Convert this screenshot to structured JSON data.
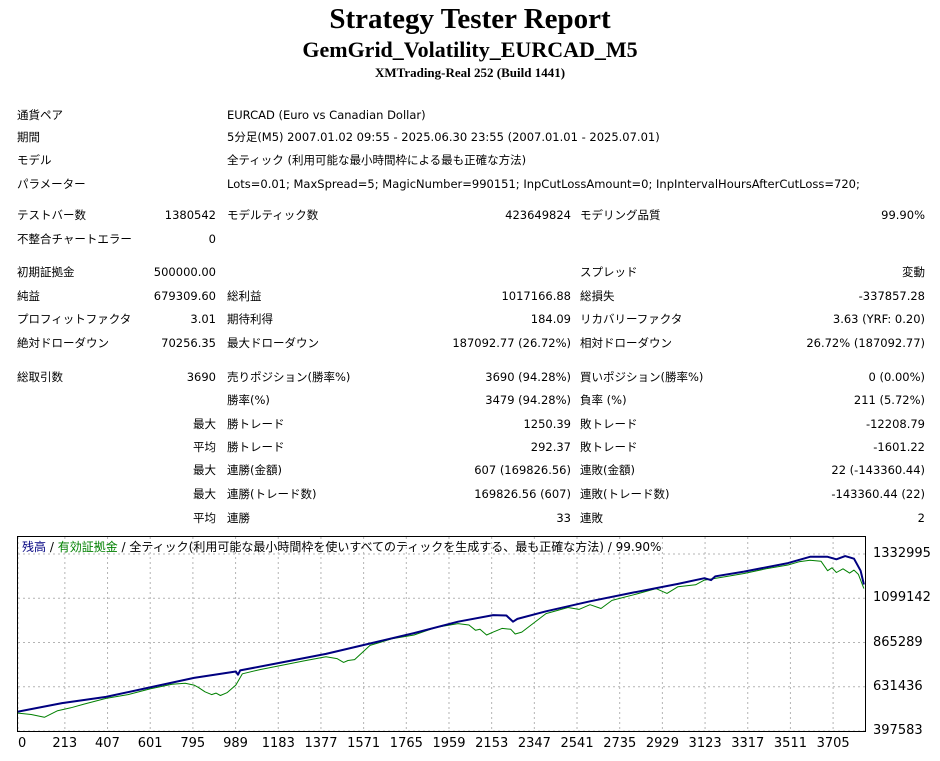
{
  "header": {
    "title": "Strategy Tester Report",
    "subtitle": "GemGrid_Volatility_EURCAD_M5",
    "server": "XMTrading-Real 252 (Build 1441)"
  },
  "settings": {
    "pair_label": "通貨ペア",
    "pair_value": "EURCAD (Euro vs Canadian Dollar)",
    "period_label": "期間",
    "period_value": "5分足(M5) 2007.01.02 09:55 - 2025.06.30 23:55 (2007.01.01 - 2025.07.01)",
    "model_label": "モデル",
    "model_value": "全ティック (利用可能な最小時間枠による最も正確な方法)",
    "params_label": "パラメーター",
    "params_value": "Lots=0.01; MaxSpread=5; MagicNumber=990151; InpCutLossAmount=0; InpIntervalHoursAfterCutLoss=720;"
  },
  "stats": {
    "bars_label": "テストバー数",
    "bars_value": "1380542",
    "ticks_label": "モデルティック数",
    "ticks_value": "423649824",
    "quality_label": "モデリング品質",
    "quality_value": "99.90%",
    "mismatch_label": "不整合チャートエラー",
    "mismatch_value": "0",
    "deposit_label": "初期証拠金",
    "deposit_value": "500000.00",
    "spread_label": "スプレッド",
    "spread_value": "変動",
    "net_label": "純益",
    "net_value": "679309.60",
    "gross_profit_label": "総利益",
    "gross_profit_value": "1017166.88",
    "gross_loss_label": "総損失",
    "gross_loss_value": "-337857.28",
    "pf_label": "プロフィットファクタ",
    "pf_value": "3.01",
    "expected_label": "期待利得",
    "expected_value": "184.09",
    "recovery_label": "リカバリーファクタ",
    "recovery_value": "3.63 (YRF: 0.20)",
    "abs_dd_label": "絶対ドローダウン",
    "abs_dd_value": "70256.35",
    "max_dd_label": "最大ドローダウン",
    "max_dd_value": "187092.77 (26.72%)",
    "rel_dd_label": "相対ドローダウン",
    "rel_dd_value": "26.72% (187092.77)",
    "trades_label": "総取引数",
    "trades_value": "3690",
    "short_label": "売りポジション(勝率%)",
    "short_value": "3690 (94.28%)",
    "long_label": "買いポジション(勝率%)",
    "long_value": "0 (0.00%)",
    "winrate_label": "勝率(%)",
    "winrate_value": "3479 (94.28%)",
    "lossrate_label": "負率 (%)",
    "lossrate_value": "211 (5.72%)",
    "max_label": "最大",
    "avg_label": "平均",
    "largest_win_label": "勝トレード",
    "largest_win_value": "1250.39",
    "largest_loss_label": "敗トレード",
    "largest_loss_value": "-12208.79",
    "avg_win_label": "勝トレード",
    "avg_win_value": "292.37",
    "avg_loss_label": "敗トレード",
    "avg_loss_value": "-1601.22",
    "max_consec_wins_money_label": "連勝(金額)",
    "max_consec_wins_money_value": "607 (169826.56)",
    "max_consec_losses_money_label": "連敗(金額)",
    "max_consec_losses_money_value": "22 (-143360.44)",
    "max_consec_wins_trades_label": "連勝(トレード数)",
    "max_consec_wins_trades_value": "169826.56 (607)",
    "max_consec_losses_trades_label": "連敗(トレード数)",
    "max_consec_losses_trades_value": "-143360.44 (22)",
    "avg_consec_wins_label": "連勝",
    "avg_consec_wins_value": "33",
    "avg_consec_losses_label": "連敗",
    "avg_consec_losses_value": "2"
  },
  "chart_legend": {
    "balance": "残高",
    "sep1": " / ",
    "equity": "有効証拠金",
    "sep2": " / ",
    "rest": "全ティック(利用可能な最小時間枠を使いすべてのティックを生成する、最も正確な方法) / 99.90%"
  },
  "colors": {
    "balance": "#000080",
    "equity": "#008000",
    "grid": "#b4b4b4"
  },
  "chart_data": {
    "type": "line",
    "title": "",
    "xlabel": "",
    "ylabel": "",
    "xlim": [
      0,
      3850
    ],
    "ylim": [
      397583,
      1380000
    ],
    "x_ticks": [
      0,
      213,
      407,
      601,
      795,
      989,
      1183,
      1377,
      1571,
      1765,
      1959,
      2153,
      2347,
      2541,
      2735,
      2929,
      3123,
      3317,
      3511,
      3705
    ],
    "y_ticks": [
      1332995,
      1099142,
      865289,
      631436,
      397583
    ],
    "grid": true,
    "legend": "top-left",
    "series": [
      {
        "name": "残高",
        "color": "#000080",
        "points": [
          [
            0,
            500000
          ],
          [
            200,
            545000
          ],
          [
            400,
            578000
          ],
          [
            600,
            628000
          ],
          [
            800,
            678000
          ],
          [
            990,
            712000
          ],
          [
            1000,
            695000
          ],
          [
            1010,
            718000
          ],
          [
            1200,
            760000
          ],
          [
            1400,
            805000
          ],
          [
            1600,
            860000
          ],
          [
            1800,
            915000
          ],
          [
            2000,
            975000
          ],
          [
            2160,
            1010000
          ],
          [
            2220,
            1008000
          ],
          [
            2250,
            975000
          ],
          [
            2270,
            990000
          ],
          [
            2400,
            1030000
          ],
          [
            2600,
            1083000
          ],
          [
            2800,
            1130000
          ],
          [
            3000,
            1175000
          ],
          [
            3120,
            1205000
          ],
          [
            3150,
            1195000
          ],
          [
            3170,
            1215000
          ],
          [
            3300,
            1240000
          ],
          [
            3500,
            1285000
          ],
          [
            3600,
            1318000
          ],
          [
            3680,
            1318000
          ],
          [
            3720,
            1305000
          ],
          [
            3760,
            1322000
          ],
          [
            3800,
            1308000
          ],
          [
            3830,
            1245000
          ],
          [
            3845,
            1172000
          ]
        ]
      },
      {
        "name": "有効証拠金",
        "color": "#008000",
        "points": [
          [
            0,
            492000
          ],
          [
            60,
            485000
          ],
          [
            120,
            470000
          ],
          [
            180,
            505000
          ],
          [
            240,
            520000
          ],
          [
            300,
            540000
          ],
          [
            400,
            570000
          ],
          [
            500,
            590000
          ],
          [
            600,
            620000
          ],
          [
            700,
            645000
          ],
          [
            760,
            650000
          ],
          [
            800,
            640000
          ],
          [
            820,
            628000
          ],
          [
            850,
            605000
          ],
          [
            880,
            590000
          ],
          [
            900,
            598000
          ],
          [
            920,
            585000
          ],
          [
            950,
            600000
          ],
          [
            990,
            640000
          ],
          [
            1020,
            700000
          ],
          [
            1100,
            722000
          ],
          [
            1200,
            745000
          ],
          [
            1300,
            768000
          ],
          [
            1400,
            790000
          ],
          [
            1450,
            780000
          ],
          [
            1480,
            760000
          ],
          [
            1500,
            770000
          ],
          [
            1530,
            775000
          ],
          [
            1600,
            850000
          ],
          [
            1700,
            885000
          ],
          [
            1800,
            905000
          ],
          [
            1900,
            945000
          ],
          [
            2000,
            965000
          ],
          [
            2050,
            958000
          ],
          [
            2080,
            930000
          ],
          [
            2100,
            935000
          ],
          [
            2130,
            905000
          ],
          [
            2160,
            920000
          ],
          [
            2200,
            940000
          ],
          [
            2240,
            935000
          ],
          [
            2260,
            910000
          ],
          [
            2290,
            920000
          ],
          [
            2400,
            1018000
          ],
          [
            2500,
            1050000
          ],
          [
            2550,
            1040000
          ],
          [
            2600,
            1065000
          ],
          [
            2650,
            1045000
          ],
          [
            2700,
            1088000
          ],
          [
            2800,
            1118000
          ],
          [
            2900,
            1150000
          ],
          [
            2950,
            1125000
          ],
          [
            3000,
            1160000
          ],
          [
            3080,
            1170000
          ],
          [
            3120,
            1195000
          ],
          [
            3200,
            1210000
          ],
          [
            3300,
            1230000
          ],
          [
            3400,
            1255000
          ],
          [
            3500,
            1275000
          ],
          [
            3550,
            1292000
          ],
          [
            3600,
            1300000
          ],
          [
            3650,
            1295000
          ],
          [
            3680,
            1245000
          ],
          [
            3700,
            1260000
          ],
          [
            3720,
            1235000
          ],
          [
            3750,
            1255000
          ],
          [
            3780,
            1232000
          ],
          [
            3800,
            1248000
          ],
          [
            3820,
            1225000
          ],
          [
            3845,
            1150000
          ]
        ]
      }
    ]
  }
}
